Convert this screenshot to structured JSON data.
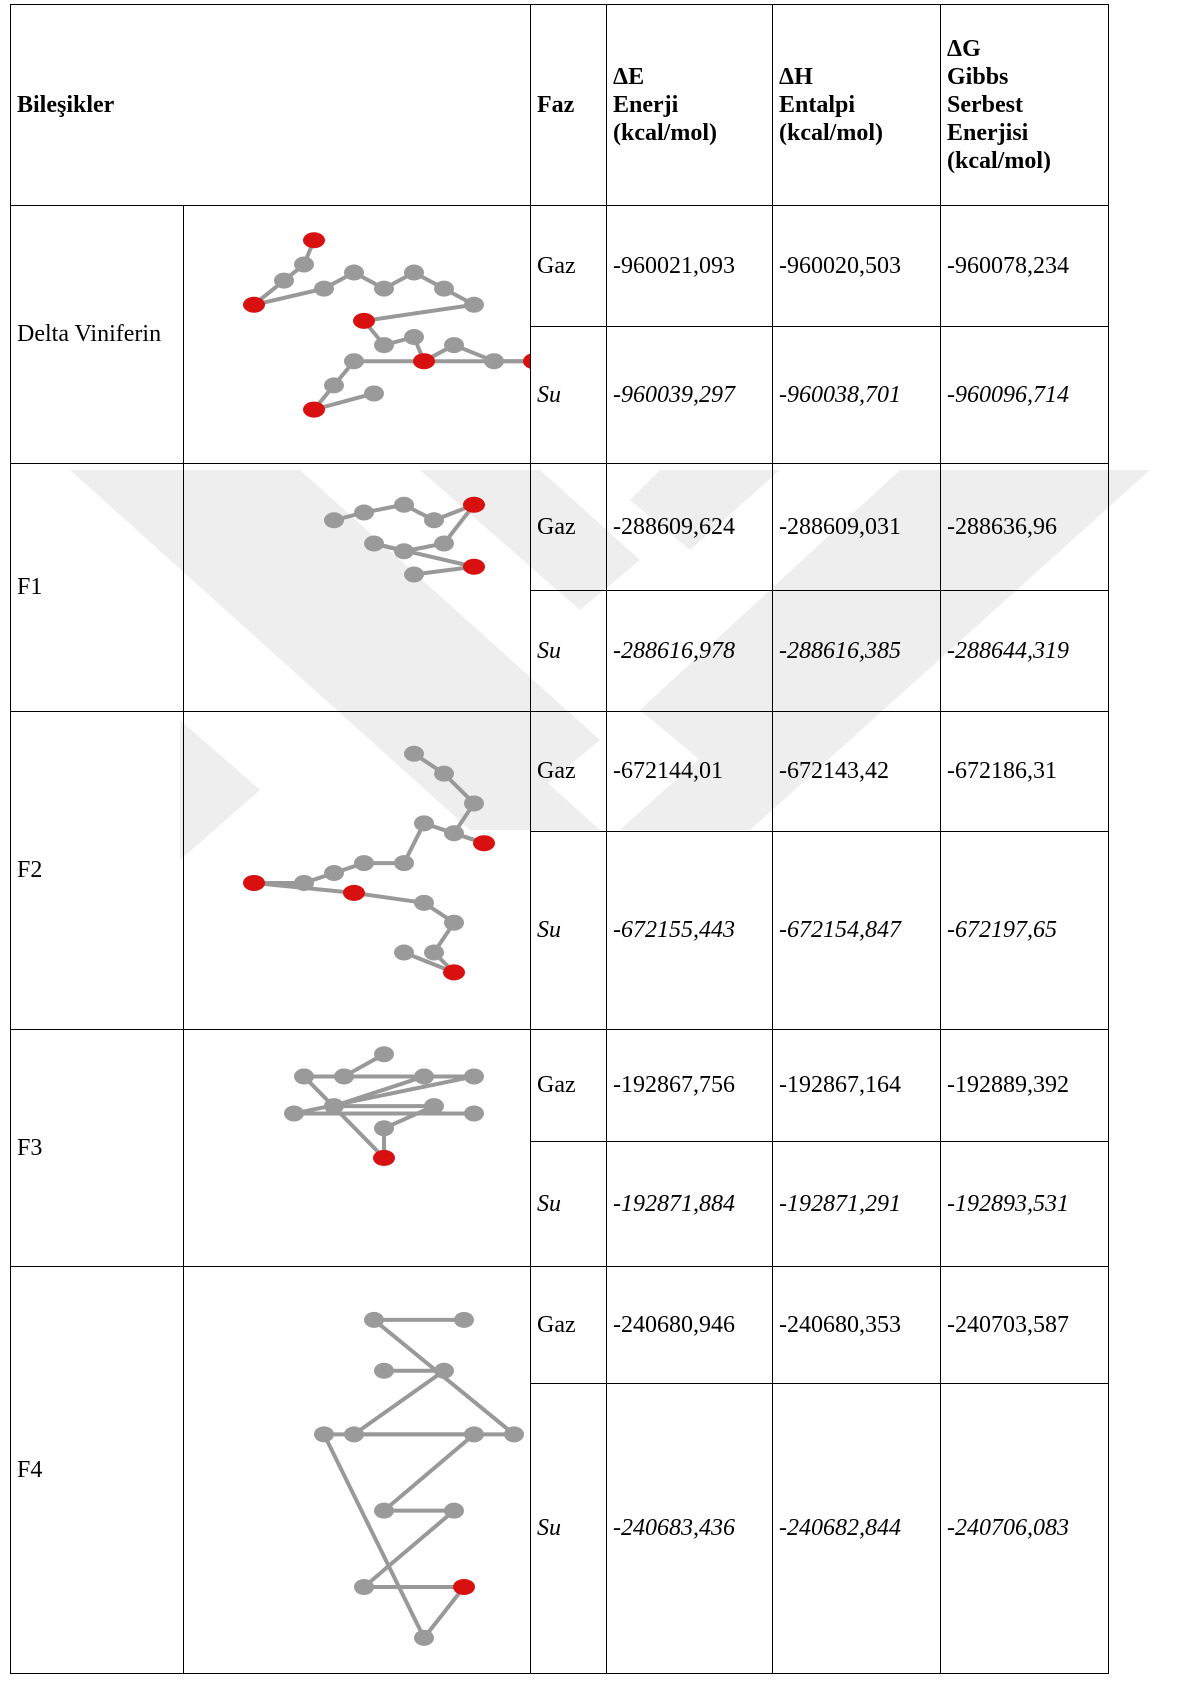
{
  "header": {
    "columns": [
      [
        "Bileşikler"
      ],
      [
        "Faz"
      ],
      [
        "ΔE",
        "Enerji",
        "(kcal/mol)"
      ],
      [
        "ΔH",
        "Entalpi",
        "(kcal/mol)"
      ],
      [
        "ΔG",
        "Gibbs",
        "Serbest",
        "Enerjisi",
        "(kcal/mol)"
      ]
    ]
  },
  "table": {
    "rows": [
      {
        "compound": "Delta Viniferin",
        "phases": [
          {
            "phase": "Gaz",
            "values": [
              "-960021,093",
              "-960020,503",
              "-960078,234"
            ]
          },
          {
            "phase": "Su",
            "values": [
              "-960039,297",
              "-960038,701",
              "-960096,714"
            ]
          }
        ]
      },
      {
        "compound": "F1",
        "phases": [
          {
            "phase": "Gaz",
            "values": [
              "-288609,624",
              "-288609,031",
              "-288636,96"
            ]
          },
          {
            "phase": "Su",
            "values": [
              "-288616,978",
              "-288616,385",
              "-288644,319"
            ]
          }
        ]
      },
      {
        "compound": "F2",
        "phases": [
          {
            "phase": "Gaz",
            "values": [
              "-672144,01",
              "-672143,42",
              "-672186,31"
            ]
          },
          {
            "phase": "Su",
            "values": [
              "-672155,443",
              "-672154,847",
              "-672197,65"
            ]
          }
        ]
      },
      {
        "compound": "F3",
        "phases": [
          {
            "phase": "Gaz",
            "values": [
              "-192867,756",
              "-192867,164",
              "-192889,392"
            ]
          },
          {
            "phase": "Su",
            "values": [
              "-192871,884",
              "-192871,291",
              "-192893,531"
            ]
          }
        ]
      },
      {
        "compound": "F4",
        "phases": [
          {
            "phase": "Gaz",
            "values": [
              "-240680,946",
              "-240680,353",
              "-240703,587"
            ]
          },
          {
            "phase": "Su",
            "values": [
              "-240683,436",
              "-240682,844",
              "-240706,083"
            ]
          }
        ]
      }
    ]
  }
}
